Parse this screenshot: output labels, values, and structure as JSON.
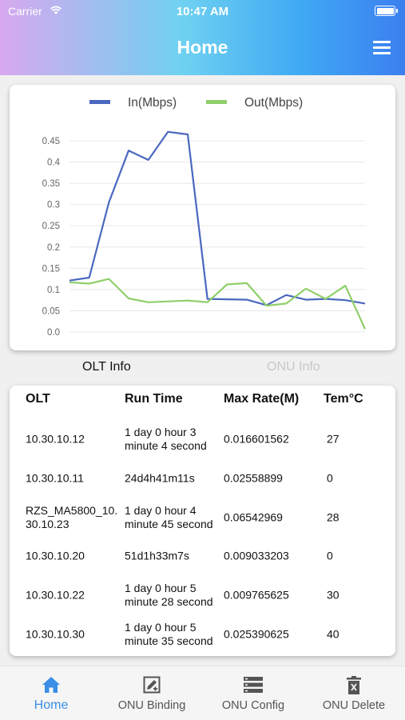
{
  "status_bar": {
    "carrier": "Carrier",
    "time": "10:47 AM"
  },
  "header": {
    "title": "Home",
    "menu_icon": "hamburger-menu-icon"
  },
  "chart_data": {
    "type": "line",
    "x": [
      1,
      2,
      3,
      4,
      5,
      6,
      7,
      8,
      9,
      10,
      11,
      12,
      13,
      14,
      15,
      16
    ],
    "series": [
      {
        "name": "In(Mbps)",
        "color": "#4a68bf",
        "values": [
          0.121,
          0.128,
          0.305,
          0.427,
          0.405,
          0.471,
          0.465,
          0.078,
          0.077,
          0.076,
          0.063,
          0.087,
          0.076,
          0.078,
          0.075,
          0.067
        ]
      },
      {
        "name": "Out(Mbps)",
        "color": "#8fcf6a",
        "values": [
          0.117,
          0.114,
          0.125,
          0.079,
          0.07,
          0.072,
          0.074,
          0.07,
          0.112,
          0.115,
          0.062,
          0.067,
          0.102,
          0.078,
          0.109,
          0.007
        ]
      }
    ],
    "ylim": [
      0,
      0.45
    ],
    "yticks": [
      "0.0",
      "0.05",
      "0.1",
      "0.15",
      "0.2",
      "0.25",
      "0.3",
      "0.35",
      "0.4",
      "0.45"
    ],
    "grid": true,
    "legend": "top"
  },
  "tabs": {
    "olt": "OLT Info",
    "onu": "ONU Info"
  },
  "table": {
    "headers": [
      "OLT",
      "Run Time",
      "Max Rate(M)",
      "Tem°C"
    ],
    "rows": [
      [
        "10.30.10.12",
        "1 day 0 hour 3 minute 4 second",
        "0.016601562",
        "27"
      ],
      [
        "10.30.10.11",
        "24d4h41m11s",
        "0.02558899",
        "0"
      ],
      [
        "RZS_MA5800_10.30.10.23",
        "1 day 0 hour 4 minute 45 second",
        "0.06542969",
        "28"
      ],
      [
        "10.30.10.20",
        "51d1h33m7s",
        "0.009033203",
        "0"
      ],
      [
        "10.30.10.22",
        "1 day 0 hour 5 minute 28 second",
        "0.009765625",
        "30"
      ],
      [
        "10.30.10.30",
        "1 day 0 hour 5 minute 35 second",
        "0.025390625",
        "40"
      ]
    ]
  },
  "tabbar": [
    {
      "label": "Home",
      "icon": "home-icon",
      "active": true
    },
    {
      "label": "ONU Binding",
      "icon": "edit-square-icon",
      "active": false
    },
    {
      "label": "ONU Config",
      "icon": "list-config-icon",
      "active": false
    },
    {
      "label": "ONU Delete",
      "icon": "trash-icon",
      "active": false
    }
  ],
  "colors": {
    "accent": "#3a8ee6",
    "in_series": "#4a68bf",
    "out_series": "#8fcf6a"
  }
}
